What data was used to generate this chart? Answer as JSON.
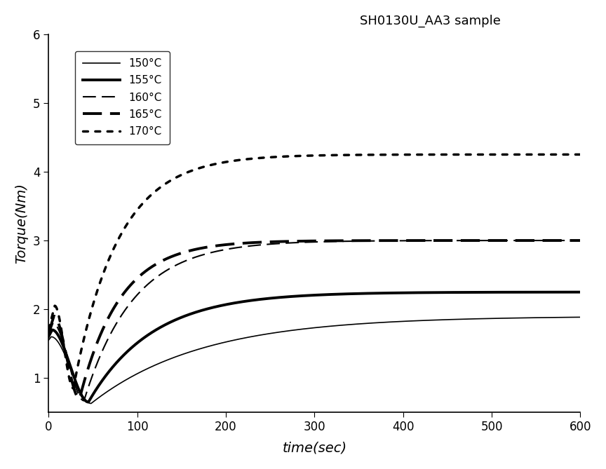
{
  "title": "SH0130U_AA3 sample",
  "xlabel": "time(sec)",
  "ylabel": "Torque(Nm)",
  "xlim": [
    0,
    600
  ],
  "ylim": [
    0.5,
    6
  ],
  "yticks": [
    1,
    2,
    3,
    4,
    5,
    6
  ],
  "xticks": [
    0,
    100,
    200,
    300,
    400,
    500,
    600
  ],
  "background_color": "#ffffff",
  "curves": [
    {
      "label": "150°C",
      "linestyle": "solid",
      "linewidth": 1.2,
      "color": "#000000",
      "t0_val": 1.55,
      "peak_time": 3,
      "peak_val": 1.6,
      "tmin_time": 48,
      "tmin_val": 0.63,
      "t_end_val": 1.9,
      "rise_rate": 0.008
    },
    {
      "label": "155°C",
      "linestyle": "solid",
      "linewidth": 2.8,
      "color": "#000000",
      "t0_val": 1.6,
      "peak_time": 4,
      "peak_val": 1.7,
      "tmin_time": 45,
      "tmin_val": 0.65,
      "t_end_val": 2.25,
      "rise_rate": 0.014
    },
    {
      "label": "160°C",
      "linestyle": "dashed",
      "linewidth": 1.5,
      "color": "#000000",
      "t0_val": 1.62,
      "peak_time": 5,
      "peak_val": 1.8,
      "tmin_time": 40,
      "tmin_val": 0.67,
      "t_end_val": 3.0,
      "rise_rate": 0.018
    },
    {
      "label": "165°C",
      "linestyle": "dashed",
      "linewidth": 2.8,
      "color": "#000000",
      "t0_val": 1.65,
      "peak_time": 6,
      "peak_val": 1.9,
      "tmin_time": 35,
      "tmin_val": 0.7,
      "t_end_val": 3.0,
      "rise_rate": 0.022
    },
    {
      "label": "170°C",
      "linestyle": "dotted",
      "linewidth": 2.5,
      "color": "#000000",
      "t0_val": 1.7,
      "peak_time": 7,
      "peak_val": 2.05,
      "tmin_time": 28,
      "tmin_val": 0.85,
      "t_end_val": 4.25,
      "rise_rate": 0.02
    }
  ]
}
